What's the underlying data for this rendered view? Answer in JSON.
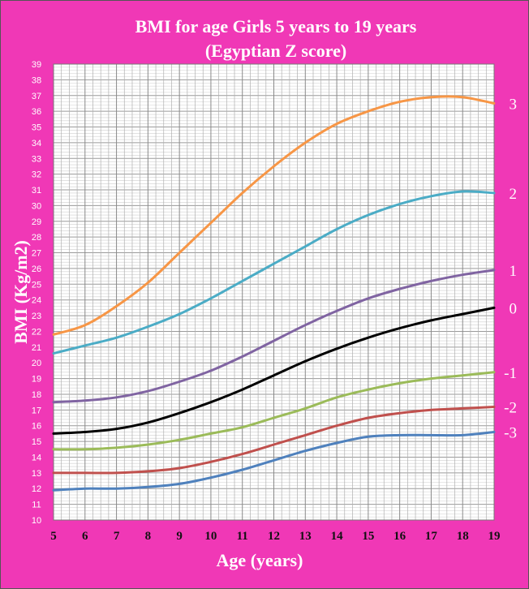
{
  "chart_data": {
    "type": "line",
    "title": "BMI for age Girls 5 years to 19 years",
    "subtitle": "(Egyptian Z score)",
    "xlabel": "Age (years)",
    "ylabel": "BMI (Kg/m2)",
    "xlim": [
      5,
      19
    ],
    "ylim": [
      10,
      39
    ],
    "x_ticks": [
      "5",
      "6",
      "7",
      "8",
      "9",
      "10",
      "11",
      "12",
      "13",
      "14",
      "15",
      "16",
      "17",
      "18",
      "19"
    ],
    "y_ticks": [
      "10",
      "11",
      "12",
      "13",
      "14",
      "15",
      "16",
      "17",
      "18",
      "19",
      "20",
      "21",
      "22",
      "23",
      "24",
      "25",
      "26",
      "27",
      "28",
      "29",
      "30",
      "31",
      "32",
      "33",
      "34",
      "35",
      "36",
      "37",
      "38",
      "39"
    ],
    "grid": true,
    "background_color": "#f038b6",
    "plot_background": "#ffffff",
    "x": [
      5,
      6,
      7,
      8,
      9,
      10,
      11,
      12,
      13,
      14,
      15,
      16,
      17,
      18,
      19
    ],
    "series": [
      {
        "z": "3",
        "color": "#f79646",
        "values": [
          21.8,
          22.4,
          23.6,
          25.1,
          27.0,
          28.9,
          30.8,
          32.5,
          34.0,
          35.2,
          36.0,
          36.6,
          36.9,
          36.9,
          36.5
        ]
      },
      {
        "z": "2",
        "color": "#4bacc6",
        "values": [
          20.6,
          21.1,
          21.6,
          22.3,
          23.1,
          24.1,
          25.2,
          26.3,
          27.4,
          28.5,
          29.4,
          30.1,
          30.6,
          30.9,
          30.8
        ]
      },
      {
        "z": "1",
        "color": "#8064a2",
        "values": [
          17.5,
          17.6,
          17.8,
          18.2,
          18.8,
          19.5,
          20.4,
          21.4,
          22.4,
          23.3,
          24.1,
          24.7,
          25.2,
          25.6,
          25.9
        ]
      },
      {
        "z": "0",
        "color": "#000000",
        "values": [
          15.5,
          15.6,
          15.8,
          16.2,
          16.8,
          17.5,
          18.3,
          19.2,
          20.1,
          20.9,
          21.6,
          22.2,
          22.7,
          23.1,
          23.5
        ]
      },
      {
        "z": "-1",
        "color": "#9bbb59",
        "values": [
          14.5,
          14.5,
          14.6,
          14.8,
          15.1,
          15.5,
          15.9,
          16.5,
          17.1,
          17.8,
          18.3,
          18.7,
          19.0,
          19.2,
          19.4
        ]
      },
      {
        "z": "-2",
        "color": "#c0504d",
        "values": [
          13.0,
          13.0,
          13.0,
          13.1,
          13.3,
          13.7,
          14.2,
          14.8,
          15.4,
          16.0,
          16.5,
          16.8,
          17.0,
          17.1,
          17.2
        ]
      },
      {
        "z": "-3",
        "color": "#4f81bd",
        "values": [
          11.9,
          12.0,
          12.0,
          12.1,
          12.3,
          12.7,
          13.2,
          13.8,
          14.4,
          14.9,
          15.3,
          15.4,
          15.4,
          15.4,
          15.6
        ]
      }
    ]
  }
}
